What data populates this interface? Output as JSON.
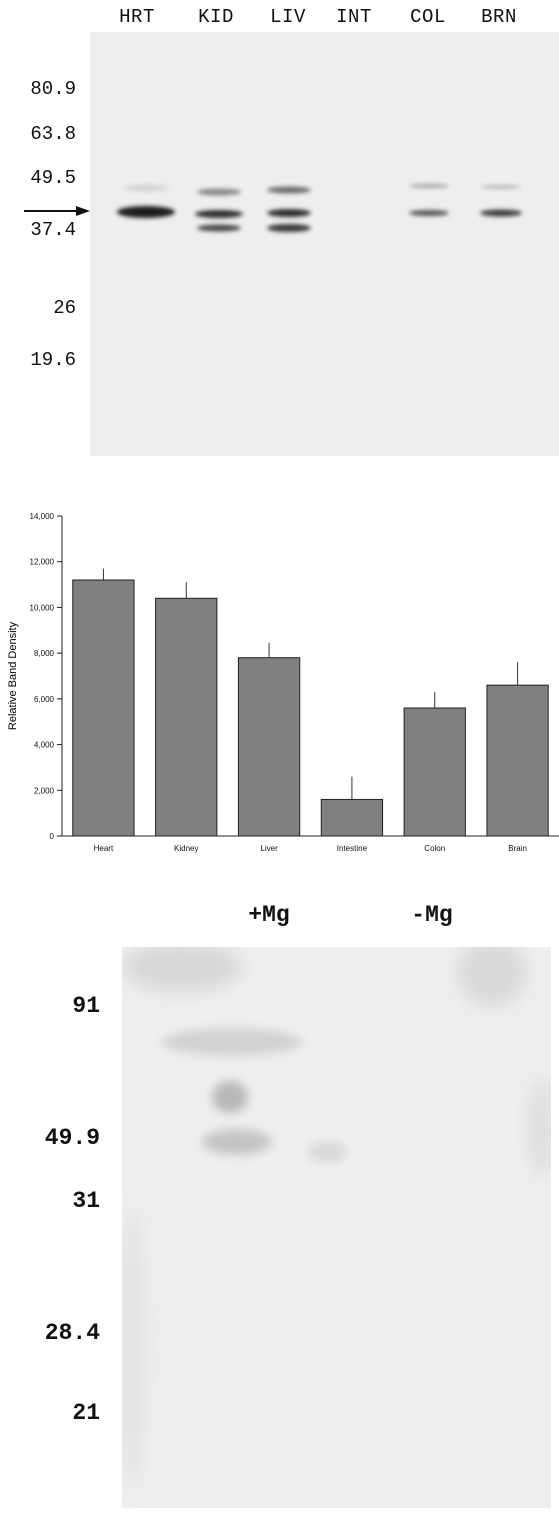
{
  "panel_a": {
    "lanes": [
      "HRT",
      "KID",
      "LIV",
      "INT",
      "COL",
      "BRN"
    ],
    "mw_markers": [
      "80.9",
      "63.8",
      "49.5",
      "37.4",
      "26",
      "19.6"
    ]
  },
  "chart_data": {
    "type": "bar",
    "categories": [
      "Heart",
      "Kidney",
      "Liver",
      "Intestine",
      "Colon",
      "Brain"
    ],
    "values": [
      11200,
      10400,
      7800,
      1600,
      5600,
      6600
    ],
    "error_plus": [
      500,
      700,
      650,
      1000,
      700,
      1000
    ],
    "ylabel": "Relative Band Density",
    "ylim": [
      0,
      14000
    ],
    "yticks": [
      "0",
      "2,000",
      "4,000",
      "6,000",
      "8,000",
      "10,000",
      "12,000",
      "14,000"
    ],
    "tick_values": [
      0,
      2000,
      4000,
      6000,
      8000,
      10000,
      12000,
      14000
    ],
    "grid": false,
    "bar_color": "#808080"
  },
  "panel_c": {
    "conditions": [
      "+Mg",
      "-Mg"
    ],
    "mw_markers": [
      "91",
      "49.9",
      "31",
      "28.4",
      "21"
    ]
  }
}
